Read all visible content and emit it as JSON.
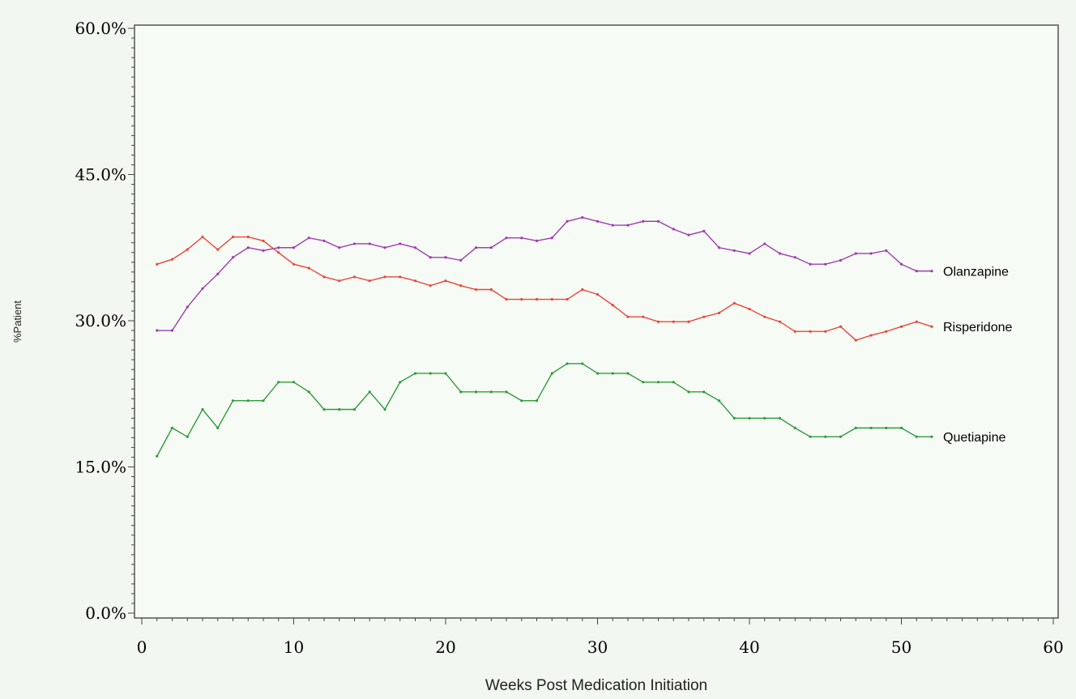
{
  "chart_data": {
    "type": "line",
    "xlabel": "Weeks Post Medication Initiation",
    "ylabel": "%Patient",
    "xlim": [
      0,
      60
    ],
    "ylim": [
      0,
      60
    ],
    "xticks": [
      0,
      10,
      20,
      30,
      40,
      50,
      60
    ],
    "xtick_labels": [
      "0",
      "10",
      "20",
      "30",
      "40",
      "50",
      "60"
    ],
    "yticks": [
      0,
      15,
      30,
      45,
      60
    ],
    "ytick_labels": [
      "0.0%",
      "15.0%",
      "30.0%",
      "45.0%",
      "60.0%"
    ],
    "grid": false,
    "legend": "direct labels at right end of each line",
    "x": [
      1,
      2,
      3,
      4,
      5,
      6,
      7,
      8,
      9,
      10,
      11,
      12,
      13,
      14,
      15,
      16,
      17,
      18,
      19,
      20,
      21,
      22,
      23,
      24,
      25,
      26,
      27,
      28,
      29,
      30,
      31,
      32,
      33,
      34,
      35,
      36,
      37,
      38,
      39,
      40,
      41,
      42,
      43,
      44,
      45,
      46,
      47,
      48,
      49,
      50,
      51,
      52
    ],
    "series": [
      {
        "name": "Olanzapine",
        "color": "#a03cb0",
        "values": [
          29.0,
          29.0,
          31.4,
          33.3,
          34.8,
          36.5,
          37.5,
          37.2,
          37.5,
          37.5,
          38.5,
          38.2,
          37.5,
          37.9,
          37.9,
          37.5,
          37.9,
          37.5,
          36.5,
          36.5,
          36.2,
          37.5,
          37.5,
          38.5,
          38.5,
          38.2,
          38.5,
          40.2,
          40.6,
          40.2,
          39.8,
          39.8,
          40.2,
          40.2,
          39.4,
          38.8,
          39.2,
          37.5,
          37.2,
          36.9,
          37.9,
          36.9,
          36.5,
          35.8,
          35.8,
          36.2,
          36.9,
          36.9,
          37.2,
          35.8,
          35.1,
          35.1
        ]
      },
      {
        "name": "Risperidone",
        "color": "#e8473a",
        "values": [
          35.8,
          36.3,
          37.3,
          38.6,
          37.3,
          38.6,
          38.6,
          38.2,
          37.0,
          35.8,
          35.4,
          34.5,
          34.1,
          34.5,
          34.1,
          34.5,
          34.5,
          34.1,
          33.6,
          34.1,
          33.6,
          33.2,
          33.2,
          32.2,
          32.2,
          32.2,
          32.2,
          32.2,
          33.2,
          32.7,
          31.6,
          30.4,
          30.4,
          29.9,
          29.9,
          29.9,
          30.4,
          30.8,
          31.8,
          31.2,
          30.4,
          29.9,
          28.9,
          28.9,
          28.9,
          29.4,
          28.0,
          28.5,
          28.9,
          29.4,
          29.9,
          29.4
        ]
      },
      {
        "name": "Quetiapine",
        "color": "#2f9c3c",
        "values": [
          16.1,
          19.0,
          18.1,
          20.9,
          19.0,
          21.8,
          21.8,
          21.8,
          23.7,
          23.7,
          22.7,
          20.9,
          20.9,
          20.9,
          22.7,
          20.9,
          23.7,
          24.6,
          24.6,
          24.6,
          22.7,
          22.7,
          22.7,
          22.7,
          21.8,
          21.8,
          24.6,
          25.6,
          25.6,
          24.6,
          24.6,
          24.6,
          23.7,
          23.7,
          23.7,
          22.7,
          22.7,
          21.8,
          20.0,
          20.0,
          20.0,
          20.0,
          19.0,
          18.1,
          18.1,
          18.1,
          19.0,
          19.0,
          19.0,
          19.0,
          18.1,
          18.1
        ]
      }
    ]
  }
}
